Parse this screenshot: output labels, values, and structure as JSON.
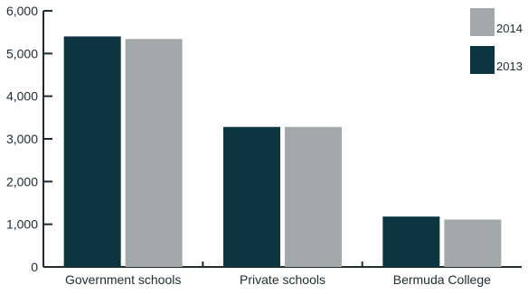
{
  "chart_data": {
    "type": "bar",
    "title": "",
    "xlabel": "",
    "ylabel": "",
    "categories": [
      "Government schools",
      "Private schools",
      "Bermuda College"
    ],
    "series": [
      {
        "name": "2013",
        "color": "#0d3540",
        "values": [
          5400,
          3280,
          1180
        ]
      },
      {
        "name": "2014",
        "color": "#a2a9ab",
        "values": [
          5340,
          3280,
          1110
        ]
      }
    ],
    "ylim": [
      0,
      6000
    ],
    "yticks": [
      0,
      1000,
      2000,
      3000,
      4000,
      5000,
      6000
    ],
    "ytick_labels": [
      "0",
      "1,000",
      "2,000",
      "3,000",
      "4,000",
      "5,000",
      "6,000"
    ],
    "grid": false,
    "legend": {
      "position": "top-right",
      "order": [
        "2014",
        "2013"
      ]
    },
    "colors": {
      "axis": "#1e2a30"
    }
  }
}
